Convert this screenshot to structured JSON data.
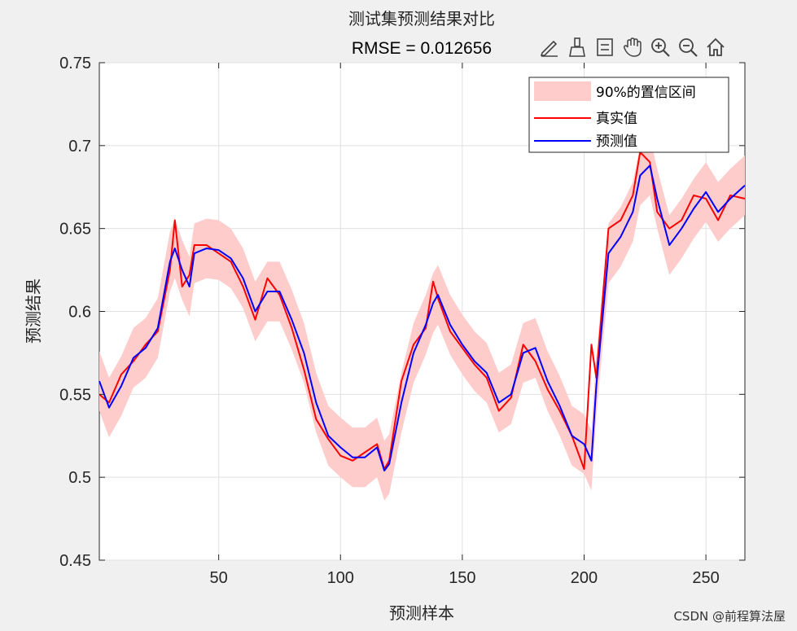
{
  "toolbar": {
    "icons": [
      "edit-plot-icon",
      "brush-icon",
      "datatip-icon",
      "pan-hand-icon",
      "zoom-in-icon",
      "zoom-out-icon",
      "home-icon"
    ]
  },
  "watermark": "CSDN @前程算法屋",
  "chart_data": {
    "type": "line",
    "title": "测试集预测结果对比",
    "subtitle": "RMSE = 0.012656",
    "xlabel": "预测样本",
    "ylabel": "预测结果",
    "xlim": [
      1,
      266
    ],
    "ylim": [
      0.45,
      0.75
    ],
    "xticks": [
      50,
      100,
      150,
      200,
      250
    ],
    "yticks": [
      0.45,
      0.5,
      0.55,
      0.6,
      0.65,
      0.7,
      0.75
    ],
    "ytick_labels": [
      "0.45",
      "0.5",
      "0.55",
      "0.6",
      "0.65",
      "0.7",
      "0.75"
    ],
    "grid": true,
    "legend_position": "top-right",
    "legend": [
      "90%的置信区间",
      "真实值",
      "预测值"
    ],
    "colors": {
      "band": "#ffcccc",
      "actual": "#ff0000",
      "predicted": "#0000ff"
    },
    "band_halfwidth": 0.018,
    "x": [
      1,
      5,
      10,
      15,
      20,
      25,
      30,
      32,
      35,
      38,
      40,
      45,
      50,
      55,
      60,
      65,
      70,
      75,
      80,
      85,
      90,
      95,
      100,
      105,
      110,
      115,
      118,
      120,
      125,
      130,
      135,
      138,
      140,
      145,
      150,
      155,
      160,
      165,
      170,
      175,
      180,
      185,
      190,
      195,
      200,
      203,
      205,
      210,
      215,
      220,
      223,
      227,
      230,
      235,
      240,
      245,
      250,
      255,
      260,
      266
    ],
    "series": [
      {
        "name": "真实值",
        "values": [
          0.55,
          0.545,
          0.562,
          0.57,
          0.58,
          0.588,
          0.625,
          0.655,
          0.615,
          0.622,
          0.64,
          0.64,
          0.635,
          0.63,
          0.615,
          0.595,
          0.62,
          0.61,
          0.59,
          0.565,
          0.535,
          0.523,
          0.513,
          0.51,
          0.515,
          0.52,
          0.505,
          0.51,
          0.558,
          0.58,
          0.59,
          0.618,
          0.608,
          0.588,
          0.578,
          0.568,
          0.56,
          0.54,
          0.548,
          0.58,
          0.57,
          0.553,
          0.54,
          0.525,
          0.505,
          0.58,
          0.56,
          0.65,
          0.655,
          0.67,
          0.696,
          0.69,
          0.66,
          0.65,
          0.655,
          0.67,
          0.668,
          0.655,
          0.67,
          0.668
        ]
      },
      {
        "name": "预测值",
        "values": [
          0.558,
          0.542,
          0.555,
          0.572,
          0.578,
          0.59,
          0.63,
          0.638,
          0.625,
          0.615,
          0.635,
          0.638,
          0.637,
          0.632,
          0.62,
          0.6,
          0.612,
          0.612,
          0.595,
          0.575,
          0.545,
          0.525,
          0.518,
          0.512,
          0.512,
          0.518,
          0.504,
          0.508,
          0.545,
          0.575,
          0.592,
          0.605,
          0.61,
          0.592,
          0.58,
          0.57,
          0.563,
          0.545,
          0.55,
          0.575,
          0.578,
          0.558,
          0.543,
          0.525,
          0.52,
          0.51,
          0.555,
          0.635,
          0.645,
          0.66,
          0.682,
          0.688,
          0.668,
          0.64,
          0.65,
          0.662,
          0.672,
          0.66,
          0.668,
          0.676
        ]
      }
    ]
  }
}
